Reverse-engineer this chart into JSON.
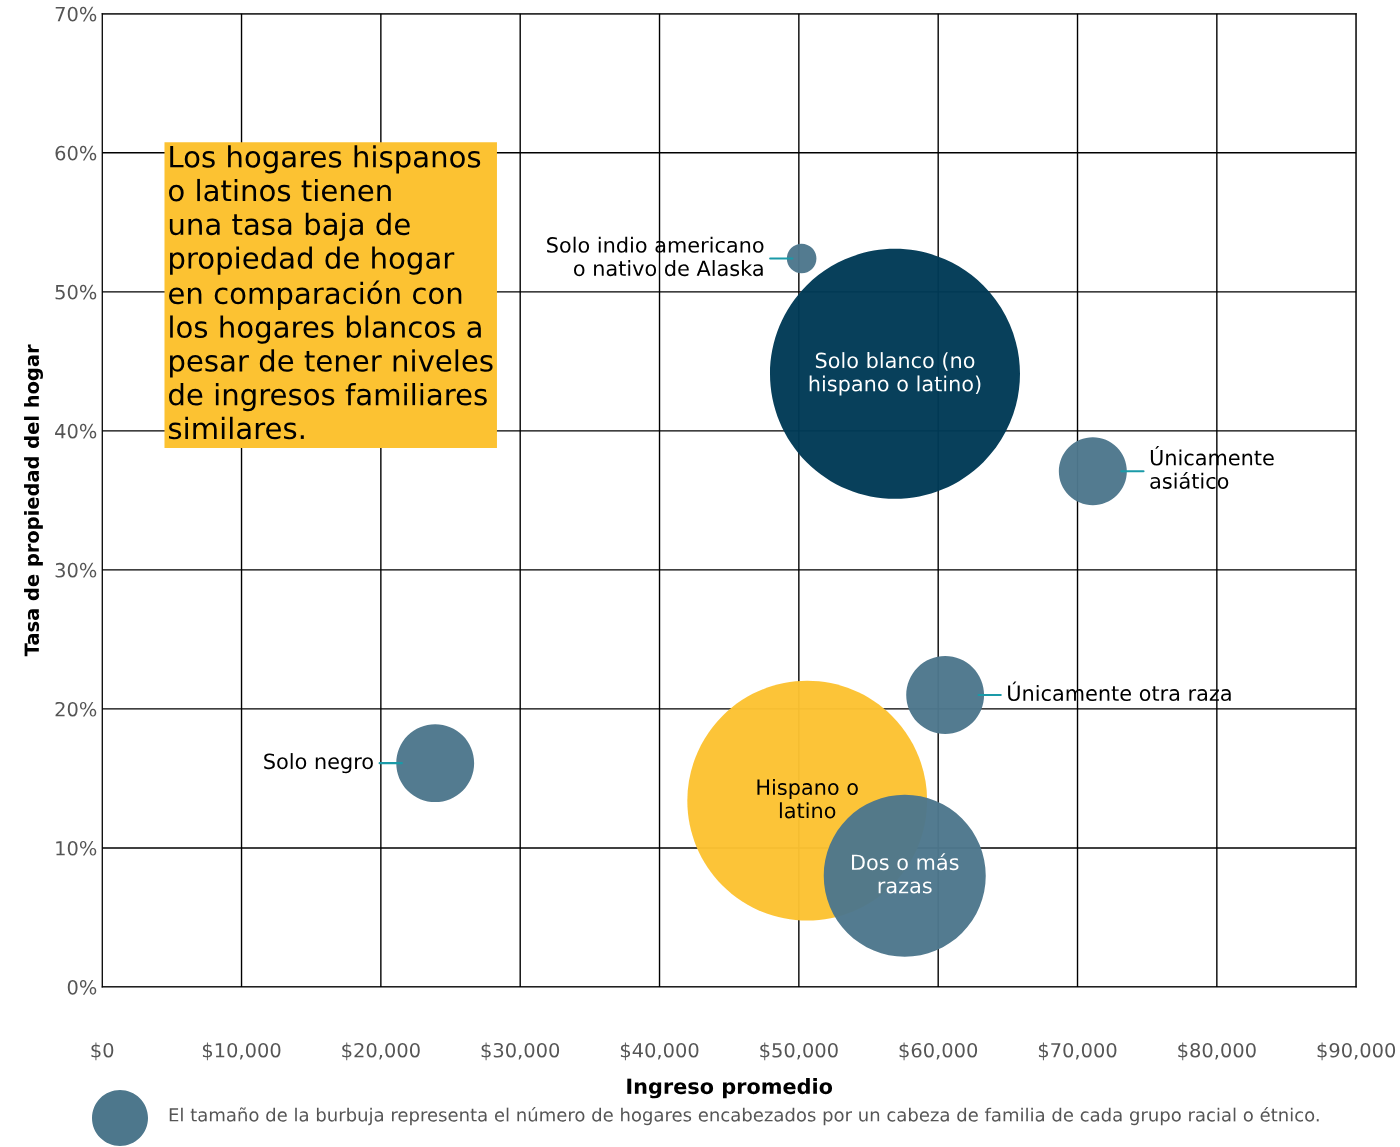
{
  "chart_data": {
    "type": "bubble",
    "xlabel": "Ingreso promedio",
    "ylabel": "Tasa de propiedad del hogar",
    "xlim": [
      0,
      90000
    ],
    "ylim": [
      0,
      70
    ],
    "xticks": [
      {
        "value": 0,
        "label": "$0"
      },
      {
        "value": 10000,
        "label": "$10,000"
      },
      {
        "value": 20000,
        "label": "$20,000"
      },
      {
        "value": 30000,
        "label": "$30,000"
      },
      {
        "value": 40000,
        "label": "$40,000"
      },
      {
        "value": 50000,
        "label": "$50,000"
      },
      {
        "value": 60000,
        "label": "$60,000"
      },
      {
        "value": 70000,
        "label": "$70,000"
      },
      {
        "value": 80000,
        "label": "$80,000"
      },
      {
        "value": 90000,
        "label": "$90,000"
      }
    ],
    "yticks": [
      {
        "value": 0,
        "label": "0%"
      },
      {
        "value": 10,
        "label": "10%"
      },
      {
        "value": 20,
        "label": "20%"
      },
      {
        "value": 30,
        "label": "30%"
      },
      {
        "value": 40,
        "label": "40%"
      },
      {
        "value": 50,
        "label": "50%"
      },
      {
        "value": 60,
        "label": "60%"
      },
      {
        "value": 70,
        "label": "70%"
      }
    ],
    "grid": true,
    "series": [
      {
        "name": "Hispano o\nlatino",
        "color": "#fcc232",
        "x": [
          50600
        ],
        "values": [
          13.4
        ],
        "sizes": [
          0.92
        ]
      },
      {
        "name": "Solo blanco (no\nhispano o latino)",
        "color": "#003a56",
        "x": [
          56900
        ],
        "values": [
          44.1
        ],
        "sizes": [
          1
        ]
      },
      {
        "name": "Solo indio americano\no nativo de Alaska",
        "color": "#4d778c",
        "x": [
          50200
        ],
        "values": [
          52.4
        ],
        "sizes": [
          0.014
        ]
      },
      {
        "name": "Únicamente\nasiático",
        "color": "#4d778c",
        "x": [
          71100
        ],
        "values": [
          37.1
        ],
        "sizes": [
          0.074
        ]
      },
      {
        "name": "Únicamente otra raza",
        "color": "#4d778c",
        "x": [
          60500
        ],
        "values": [
          21.0
        ],
        "sizes": [
          0.097
        ]
      },
      {
        "name": "Solo negro",
        "color": "#4d778c",
        "x": [
          23900
        ],
        "values": [
          16.1
        ],
        "sizes": [
          0.097
        ]
      },
      {
        "name": "Dos o más\nrazas",
        "color": "#4d778c",
        "x": [
          57600
        ],
        "values": [
          8.0
        ],
        "sizes": [
          0.42
        ]
      }
    ],
    "annotations": [
      "Los hogares hispanos\no latinos tienen\nuna tasa baja de\npropiedad de hogar\nen comparación con\nlos hogares blancos a\npesar de tener niveles\nde ingresos familiares\nsimilares.",
      "El tamaño de la burbuja representa el número de hogares encabezados por un cabeza de familia de cada grupo racial o étnico."
    ]
  }
}
